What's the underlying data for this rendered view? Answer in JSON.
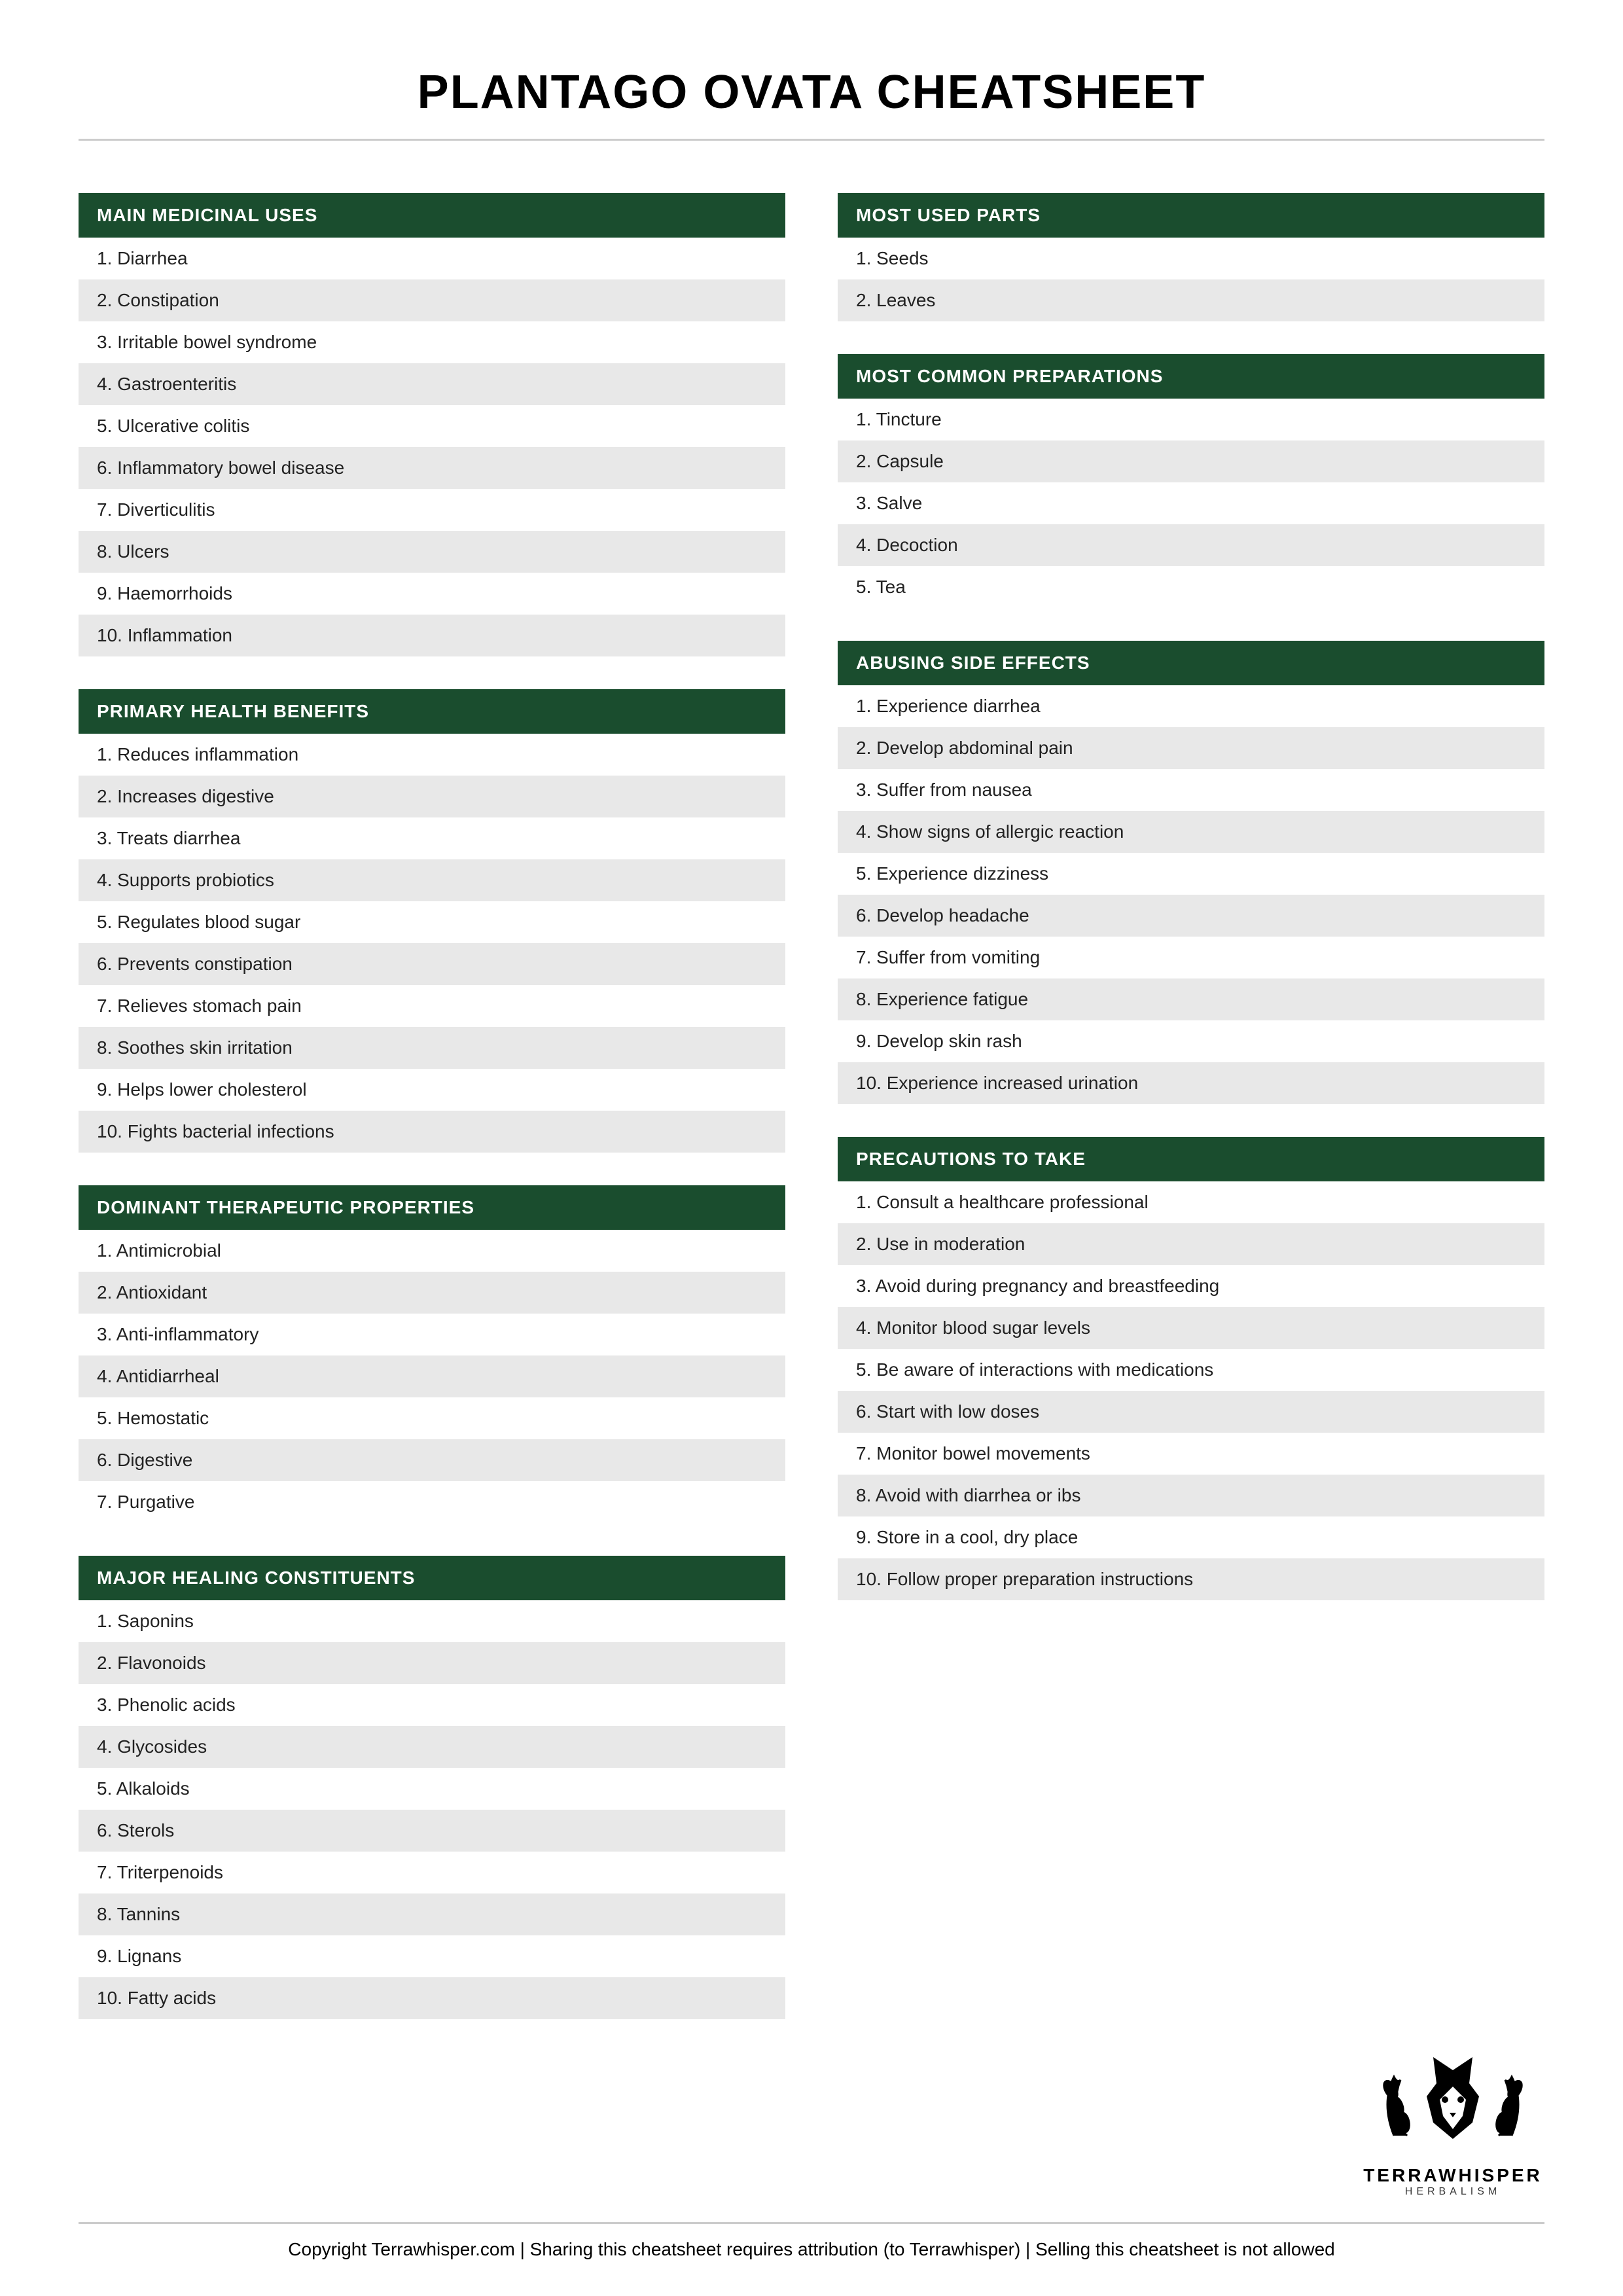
{
  "title": "PLANTAGO OVATA CHEATSHEET",
  "colors": {
    "header_bg": "#1a4d2e",
    "header_text": "#ffffff",
    "row_odd": "#ffffff",
    "row_even": "#e8e8e8",
    "text": "#222222",
    "divider": "#cccccc"
  },
  "typography": {
    "title_size": 72,
    "header_size": 28,
    "item_size": 28,
    "footer_size": 28
  },
  "left_column": [
    {
      "header": "MAIN MEDICINAL USES",
      "items": [
        "1. Diarrhea",
        "2. Constipation",
        "3. Irritable bowel syndrome",
        "4. Gastroenteritis",
        "5. Ulcerative colitis",
        "6. Inflammatory bowel disease",
        "7. Diverticulitis",
        "8. Ulcers",
        "9. Haemorrhoids",
        "10. Inflammation"
      ]
    },
    {
      "header": "PRIMARY HEALTH BENEFITS",
      "items": [
        "1. Reduces inflammation",
        "2. Increases digestive",
        "3. Treats diarrhea",
        "4. Supports probiotics",
        "5. Regulates blood sugar",
        "6. Prevents constipation",
        "7. Relieves stomach pain",
        "8. Soothes skin irritation",
        "9. Helps lower cholesterol",
        "10. Fights bacterial infections"
      ]
    },
    {
      "header": "DOMINANT THERAPEUTIC PROPERTIES",
      "items": [
        "1. Antimicrobial",
        "2. Antioxidant",
        "3. Anti-inflammatory",
        "4. Antidiarrheal",
        "5. Hemostatic",
        "6. Digestive",
        "7. Purgative"
      ]
    },
    {
      "header": "MAJOR HEALING CONSTITUENTS",
      "items": [
        "1. Saponins",
        "2. Flavonoids",
        "3. Phenolic acids",
        "4. Glycosides",
        "5. Alkaloids",
        "6. Sterols",
        "7. Triterpenoids",
        "8. Tannins",
        "9. Lignans",
        "10. Fatty acids"
      ]
    }
  ],
  "right_column": [
    {
      "header": "MOST USED PARTS",
      "items": [
        "1. Seeds",
        "2. Leaves"
      ]
    },
    {
      "header": "MOST COMMON PREPARATIONS",
      "items": [
        "1. Tincture",
        "2. Capsule",
        "3. Salve",
        "4. Decoction",
        "5. Tea"
      ]
    },
    {
      "header": "ABUSING SIDE EFFECTS",
      "items": [
        "1. Experience diarrhea",
        "2. Develop abdominal pain",
        "3. Suffer from nausea",
        "4. Show signs of allergic reaction",
        "5. Experience dizziness",
        "6. Develop headache",
        "7. Suffer from vomiting",
        "8. Experience fatigue",
        "9. Develop skin rash",
        "10. Experience increased urination"
      ]
    },
    {
      "header": "PRECAUTIONS TO TAKE",
      "items": [
        "1. Consult a healthcare professional",
        "2. Use in moderation",
        "3. Avoid during pregnancy and breastfeeding",
        "4. Monitor blood sugar levels",
        "5. Be aware of interactions with medications",
        "6. Start with low doses",
        "7. Monitor bowel movements",
        "8. Avoid with diarrhea or ibs",
        "9. Store in a cool, dry place",
        "10. Follow proper preparation instructions"
      ]
    }
  ],
  "logo": {
    "brand": "TERRAWHISPER",
    "tagline": "HERBALISM"
  },
  "footer": "Copyright Terrawhisper.com | Sharing this cheatsheet requires attribution (to Terrawhisper) | Selling this cheatsheet is not allowed"
}
